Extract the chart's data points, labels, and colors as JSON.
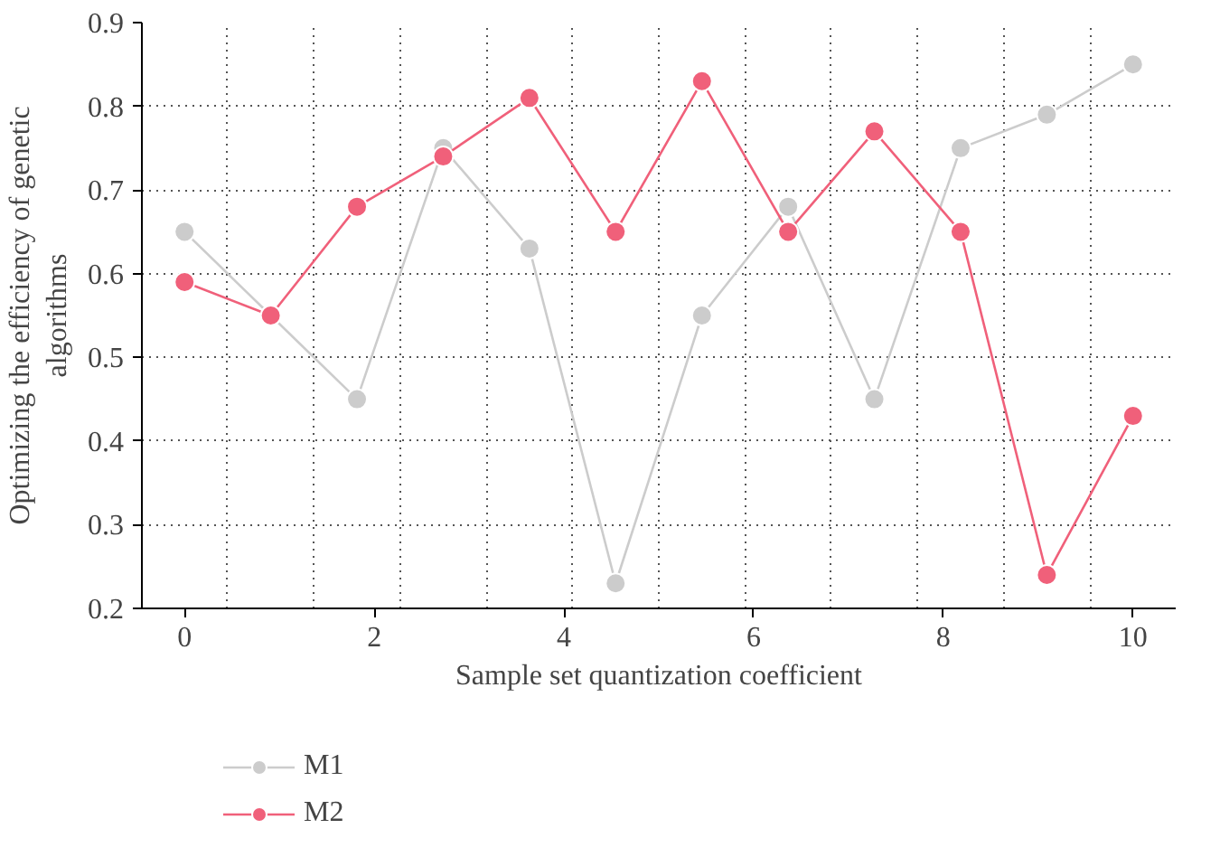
{
  "chart_data": {
    "type": "line",
    "xlabel": "Sample set quantization coefficient",
    "ylabel": "Optimizing the efficiency of genetic algorithms",
    "x": [
      0,
      0.909,
      1.818,
      2.727,
      3.636,
      4.545,
      5.455,
      6.364,
      7.273,
      8.182,
      9.091,
      10
    ],
    "series": [
      {
        "name": "M1",
        "color": "#cccccc",
        "values": [
          0.65,
          0.55,
          0.45,
          0.75,
          0.63,
          0.23,
          0.55,
          0.68,
          0.45,
          0.75,
          0.79,
          0.85
        ]
      },
      {
        "name": "M2",
        "color": "#f0607a",
        "values": [
          0.59,
          0.55,
          0.68,
          0.74,
          0.81,
          0.65,
          0.83,
          0.65,
          0.77,
          0.65,
          0.24,
          0.43
        ]
      }
    ],
    "xlim": [
      -0.45,
      10.45
    ],
    "ylim": [
      0.2,
      0.9
    ],
    "xticks": [
      0,
      2,
      4,
      6,
      8,
      10
    ],
    "yticks": [
      0.2,
      0.3,
      0.4,
      0.5,
      0.6,
      0.7,
      0.8,
      0.9
    ],
    "grid": true,
    "legend": "bottom left",
    "marker": "circle",
    "line_style": "solid"
  }
}
